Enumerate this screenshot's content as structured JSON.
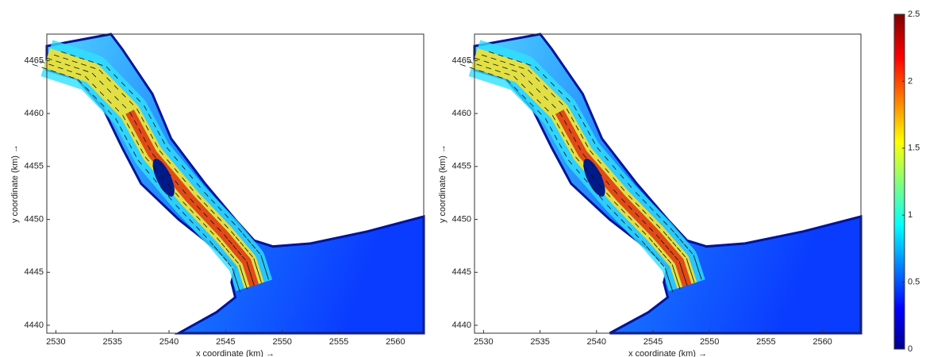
{
  "chart_data": [
    {
      "type": "map",
      "xlabel": "x coordinate (km) →",
      "ylabel": "y coordinate (km) →",
      "xlim": [
        2529.2,
        2562.5
      ],
      "ylim": [
        4439.25,
        4467.5
      ],
      "xticks": [
        2530,
        2535,
        2540,
        2545,
        2550,
        2555,
        2560
      ],
      "yticks": [
        4440,
        4445,
        4450,
        4455,
        4460,
        4465
      ]
    },
    {
      "type": "map",
      "xlabel": "x coordinate (km) →",
      "ylabel": "y coordinate (km) →",
      "xlim": [
        2529.2,
        2563.4
      ],
      "ylim": [
        4439.25,
        4467.5
      ],
      "xticks": [
        2530,
        2535,
        2540,
        2545,
        2550,
        2555,
        2560
      ],
      "yticks": [
        4440,
        4445,
        4450,
        4455,
        4460,
        4465
      ]
    },
    {
      "type": "colorbar",
      "ylim": [
        0,
        2.5
      ],
      "yticks": [
        0,
        0.5,
        1,
        1.5,
        2,
        2.5
      ]
    }
  ]
}
